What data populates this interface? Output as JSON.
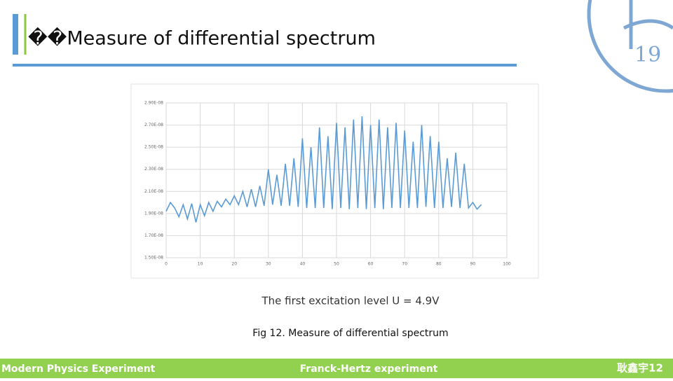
{
  "header": {
    "title": "��Measure of differential spectrum"
  },
  "logo": {
    "text": "19"
  },
  "chart_data": {
    "type": "line",
    "color": "#5b9bd5",
    "grid": true,
    "x": [
      0,
      1.25,
      2.5,
      3.75,
      5,
      6.25,
      7.5,
      8.75,
      10,
      11.25,
      12.5,
      13.75,
      15,
      16.25,
      17.5,
      18.75,
      20,
      21.25,
      22.5,
      23.75,
      25,
      26.25,
      27.5,
      28.75,
      30,
      31.25,
      32.5,
      33.75,
      35,
      36.25,
      37.5,
      38.75,
      40,
      41.25,
      42.5,
      43.75,
      45,
      46.25,
      47.5,
      48.75,
      50,
      51.25,
      52.5,
      53.75,
      55,
      56.25,
      57.5,
      58.75,
      60,
      61.25,
      62.5,
      63.75,
      65,
      66.25,
      67.5,
      68.75,
      70,
      71.25,
      72.5,
      73.75,
      75,
      76.25,
      77.5,
      78.75,
      80,
      81.25,
      82.5,
      83.75,
      85,
      86.25,
      87.5,
      88.75,
      90,
      91.25,
      92.5
    ],
    "values": [
      1.92e-08,
      2e-08,
      1.95e-08,
      1.87e-08,
      1.98e-08,
      1.85e-08,
      1.99e-08,
      1.82e-08,
      1.98e-08,
      1.88e-08,
      2e-08,
      1.92e-08,
      2.01e-08,
      1.96e-08,
      2.03e-08,
      1.98e-08,
      2.06e-08,
      1.98e-08,
      2.1e-08,
      1.96e-08,
      2.12e-08,
      1.96e-08,
      2.15e-08,
      1.97e-08,
      2.3e-08,
      1.98e-08,
      2.25e-08,
      1.97e-08,
      2.35e-08,
      1.97e-08,
      2.4e-08,
      1.96e-08,
      2.58e-08,
      1.95e-08,
      2.5e-08,
      1.95e-08,
      2.68e-08,
      1.95e-08,
      2.6e-08,
      1.94e-08,
      2.72e-08,
      1.95e-08,
      2.68e-08,
      1.94e-08,
      2.75e-08,
      1.95e-08,
      2.78e-08,
      1.94e-08,
      2.7e-08,
      1.95e-08,
      2.75e-08,
      1.94e-08,
      2.68e-08,
      1.95e-08,
      2.72e-08,
      1.95e-08,
      2.65e-08,
      1.95e-08,
      2.55e-08,
      1.95e-08,
      2.7e-08,
      1.96e-08,
      2.6e-08,
      1.95e-08,
      2.55e-08,
      1.95e-08,
      2.4e-08,
      1.96e-08,
      2.45e-08,
      1.95e-08,
      2.35e-08,
      1.95e-08,
      2e-08,
      1.94e-08,
      1.98e-08
    ],
    "xlim": [
      0,
      100
    ],
    "xticks": [
      0,
      10,
      20,
      30,
      40,
      50,
      60,
      70,
      80,
      90,
      100
    ],
    "ylim": [
      1.5e-08,
      2.9e-08
    ],
    "yticks": [
      {
        "value": 1.5e-08,
        "label": "1.50E-08"
      },
      {
        "value": 1.7e-08,
        "label": "1.70E-08"
      },
      {
        "value": 1.9e-08,
        "label": "1.90E-08"
      },
      {
        "value": 2.1e-08,
        "label": "2.10E-08"
      },
      {
        "value": 2.3e-08,
        "label": "2.30E-08"
      },
      {
        "value": 2.5e-08,
        "label": "2.50E-08"
      },
      {
        "value": 2.7e-08,
        "label": "2.70E-08"
      },
      {
        "value": 2.9e-08,
        "label": "2.90E-08"
      }
    ]
  },
  "formula": "The first excitation level U = 4.9V",
  "caption": "Fig 12. Measure of differential spectrum",
  "footer": {
    "left": "Modern Physics Experiment",
    "center": "Franck-Hertz experiment",
    "right": "耿鑫宇12"
  }
}
